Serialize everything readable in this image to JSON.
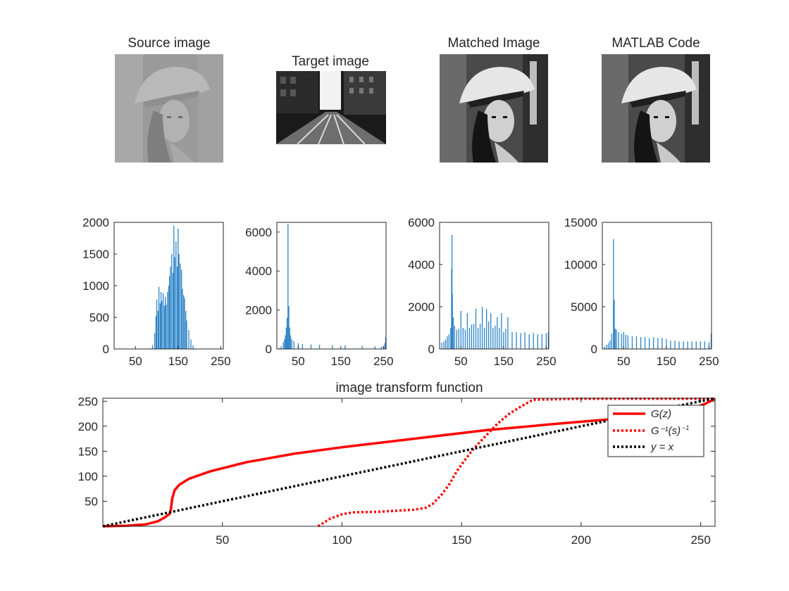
{
  "figure": {
    "image_titles": [
      "Source image",
      "Target image",
      "Matched Image",
      "MATLAB Code"
    ],
    "colors": {
      "histogram_bar": "#2d84c7",
      "axis": "#262626",
      "transform_curve": "#ff0000",
      "identity_line": "#000000"
    }
  },
  "chart_data": [
    {
      "type": "bar",
      "panel": "Source image histogram",
      "xlim": [
        0,
        256
      ],
      "ylim": [
        0,
        2000
      ],
      "xticks": [
        50,
        150,
        250
      ],
      "yticks": [
        0,
        500,
        1000,
        1500,
        2000
      ],
      "x": [
        85,
        90,
        95,
        98,
        100,
        103,
        105,
        108,
        110,
        112,
        115,
        118,
        120,
        122,
        125,
        128,
        130,
        132,
        135,
        138,
        140,
        142,
        145,
        148,
        150,
        152,
        155,
        158,
        160,
        163,
        165,
        168,
        170,
        175,
        180,
        185,
        190
      ],
      "values": [
        10,
        60,
        250,
        520,
        780,
        600,
        980,
        720,
        900,
        760,
        880,
        680,
        820,
        700,
        900,
        1000,
        1150,
        1300,
        1500,
        1200,
        1950,
        1450,
        1700,
        1300,
        1900,
        1500,
        1350,
        1250,
        950,
        850,
        800,
        600,
        450,
        300,
        150,
        60,
        10
      ]
    },
    {
      "type": "bar",
      "panel": "Target image histogram",
      "xlim": [
        0,
        256
      ],
      "ylim": [
        0,
        6500
      ],
      "xticks": [
        50,
        150,
        250
      ],
      "yticks": [
        0,
        2000,
        4000,
        6000
      ],
      "x": [
        5,
        10,
        15,
        18,
        20,
        22,
        24,
        26,
        28,
        30,
        32,
        35,
        40,
        50,
        60,
        80,
        100,
        130,
        160,
        200,
        230,
        245,
        250,
        253,
        255
      ],
      "values": [
        50,
        150,
        350,
        500,
        700,
        1100,
        1600,
        6400,
        2200,
        1100,
        700,
        500,
        400,
        300,
        250,
        230,
        220,
        200,
        180,
        160,
        140,
        120,
        150,
        300,
        600
      ]
    },
    {
      "type": "bar",
      "panel": "Matched Image histogram",
      "xlim": [
        0,
        256
      ],
      "ylim": [
        0,
        6000
      ],
      "xticks": [
        50,
        150,
        250
      ],
      "yticks": [
        0,
        2000,
        4000,
        6000
      ],
      "x": [
        5,
        10,
        14,
        18,
        22,
        26,
        28,
        29,
        30,
        32,
        35,
        40,
        45,
        50,
        55,
        60,
        65,
        70,
        75,
        80,
        85,
        90,
        95,
        100,
        105,
        110,
        115,
        120,
        125,
        130,
        135,
        140,
        145,
        150,
        155,
        160,
        170,
        180,
        190,
        200,
        210,
        220,
        230,
        240,
        250,
        255
      ],
      "values": [
        300,
        350,
        450,
        600,
        700,
        1000,
        3800,
        5400,
        2600,
        1500,
        1100,
        900,
        950,
        1800,
        1000,
        900,
        1700,
        1000,
        1150,
        1200,
        1900,
        1000,
        1200,
        2000,
        1000,
        1900,
        1300,
        1700,
        1000,
        1100,
        1500,
        1000,
        1700,
        800,
        950,
        1500,
        800,
        800,
        750,
        800,
        700,
        750,
        700,
        700,
        750,
        800
      ]
    },
    {
      "type": "bar",
      "panel": "MATLAB Code histogram",
      "xlim": [
        0,
        256
      ],
      "ylim": [
        0,
        15000
      ],
      "xticks": [
        50,
        150,
        250
      ],
      "yticks": [
        0,
        5000,
        10000,
        15000
      ],
      "x": [
        5,
        10,
        14,
        18,
        22,
        26,
        28,
        30,
        33,
        38,
        45,
        50,
        55,
        60,
        70,
        80,
        90,
        100,
        110,
        120,
        130,
        140,
        150,
        160,
        170,
        180,
        190,
        200,
        210,
        220,
        230,
        240,
        250,
        255
      ],
      "values": [
        300,
        500,
        700,
        1000,
        1800,
        13000,
        5800,
        2400,
        2300,
        2000,
        1800,
        2000,
        1700,
        1600,
        1500,
        1500,
        1400,
        1400,
        1300,
        1400,
        1300,
        1300,
        1200,
        1000,
        1000,
        900,
        900,
        900,
        900,
        900,
        900,
        900,
        800,
        1800
      ]
    },
    {
      "type": "line",
      "title": "image transform function",
      "xlim": [
        0,
        256
      ],
      "ylim": [
        0,
        256
      ],
      "xticks": [
        50,
        100,
        150,
        200,
        250
      ],
      "yticks": [
        50,
        100,
        150,
        200,
        250
      ],
      "legend": [
        "G(z)",
        "G⁻¹(s)",
        "y = x"
      ],
      "legend_sup": "−1",
      "legend_location": "top-right",
      "series": [
        {
          "name": "G(z)",
          "style": "solid",
          "x": [
            0,
            10,
            18,
            23,
            26,
            28,
            28.5,
            29,
            30,
            32,
            36,
            45,
            60,
            80,
            100,
            130,
            160,
            190,
            215,
            232,
            242,
            248,
            252,
            256
          ],
          "y": [
            0,
            1,
            4,
            10,
            18,
            25,
            35,
            55,
            72,
            83,
            95,
            110,
            128,
            145,
            158,
            175,
            192,
            205,
            215,
            222,
            228,
            238,
            245,
            255
          ]
        },
        {
          "name": "G⁻¹(s)",
          "style": "dotted",
          "x": [
            90,
            95,
            100,
            105,
            115,
            130,
            135,
            138,
            142,
            145,
            148,
            151,
            155,
            160,
            165,
            170,
            175,
            180,
            200,
            256
          ],
          "y": [
            0,
            15,
            24,
            28,
            29,
            33,
            37,
            45,
            65,
            85,
            110,
            130,
            155,
            180,
            205,
            225,
            240,
            253,
            255,
            255
          ]
        },
        {
          "name": "y = x",
          "style": "dotted",
          "x": [
            0,
            256
          ],
          "y": [
            0,
            256
          ]
        }
      ]
    }
  ]
}
